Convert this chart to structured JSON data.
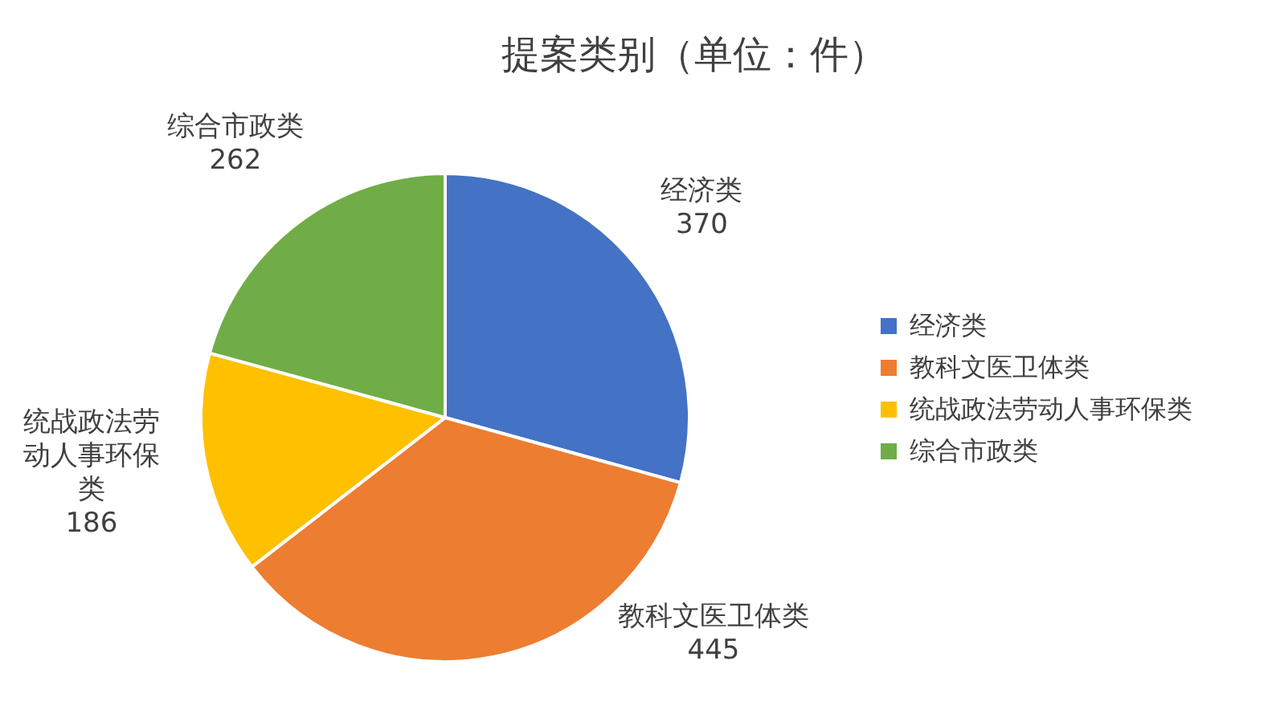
{
  "chart_data": {
    "type": "pie",
    "title": "提案类别（单位：件）",
    "categories": [
      "经济类",
      "教科文医卫体类",
      "统战政法劳动人事环保类",
      "综合市政类"
    ],
    "values": [
      370,
      445,
      186,
      262
    ],
    "colors": [
      "#4472c4",
      "#ed7d31",
      "#ffc000",
      "#70ad47"
    ],
    "legend": "right",
    "data_labels": true
  }
}
